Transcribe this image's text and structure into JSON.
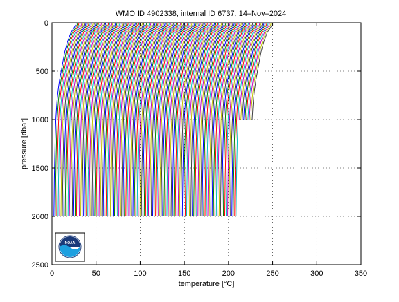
{
  "chart_data": {
    "type": "line",
    "title": "WMO ID 4902338, internal ID 6737, 14–Nov–2024",
    "xlabel": "temperature [°C]",
    "ylabel": "pressure [dbar]",
    "xlim": [
      0,
      350
    ],
    "ylim": [
      2500,
      0
    ],
    "y_reversed": true,
    "xticks": [
      0,
      50,
      100,
      150,
      200,
      250,
      300,
      350
    ],
    "yticks": [
      0,
      500,
      1000,
      1500,
      2000,
      2500
    ],
    "grid": "dotted",
    "logo_text": "NOAA",
    "profile_offset_step": 1.6,
    "profile_count_deep": 130,
    "profile_count_shallow": 10,
    "profiles_deep": {
      "pressure": [
        0,
        20,
        60,
        100,
        200,
        300,
        400,
        500,
        600,
        700,
        800,
        900,
        1000,
        1200,
        1400,
        1600,
        1800,
        2000
      ],
      "temperature": [
        27.4,
        27.0,
        24.5,
        21.5,
        17.5,
        14.5,
        12.5,
        10.5,
        8.5,
        7.0,
        5.8,
        5.0,
        4.4,
        3.6,
        3.1,
        2.7,
        2.4,
        2.2
      ]
    },
    "profiles_shallow": {
      "pressure": [
        0,
        20,
        60,
        100,
        200,
        300,
        400,
        500,
        600,
        700,
        800,
        900,
        1000
      ],
      "temperature": [
        27.4,
        27.0,
        24.5,
        21.5,
        17.5,
        14.5,
        12.5,
        10.5,
        8.5,
        7.0,
        5.8,
        5.0,
        4.4
      ]
    },
    "colors": [
      "#0000ff",
      "#008000",
      "#ff0000",
      "#00bfbf",
      "#bf00bf",
      "#bfbf00",
      "#404040"
    ]
  }
}
